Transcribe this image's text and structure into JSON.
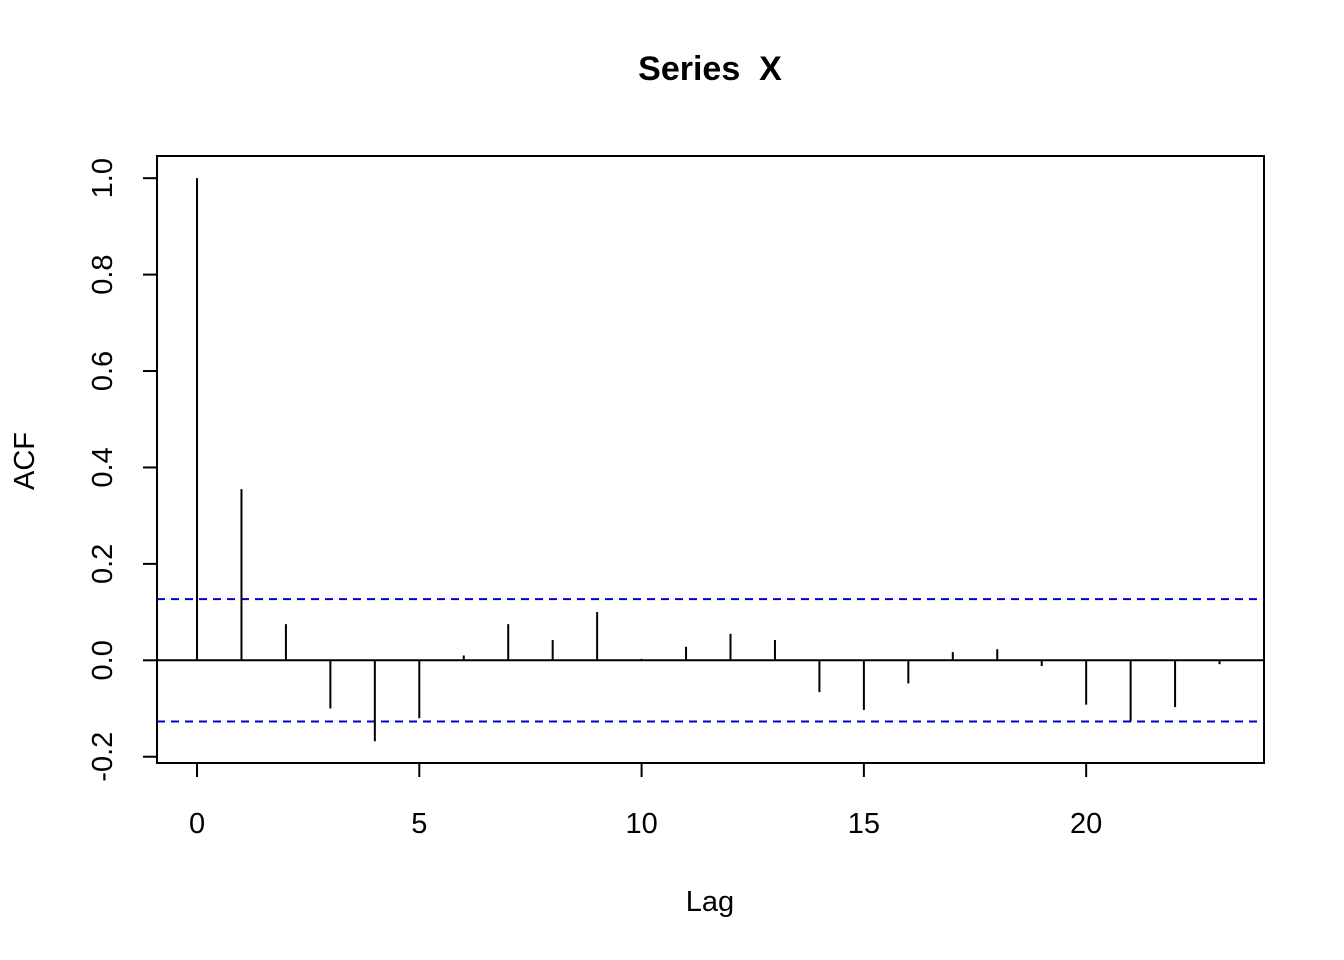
{
  "chart_data": {
    "type": "bar",
    "title": "Series  X",
    "xlabel": "Lag",
    "ylabel": "ACF",
    "xlim": [
      -0.9,
      24.0
    ],
    "ylim": [
      -0.213,
      1.046
    ],
    "x_ticks": [
      0,
      5,
      10,
      15,
      20
    ],
    "x_tick_labels": [
      "0",
      "5",
      "10",
      "15",
      "20"
    ],
    "y_ticks": [
      -0.2,
      0.0,
      0.2,
      0.4,
      0.6,
      0.8,
      1.0
    ],
    "y_tick_labels": [
      "-0.2",
      "0.0",
      "0.2",
      "0.4",
      "0.6",
      "0.8",
      "1.0"
    ],
    "lags": [
      0,
      1,
      2,
      3,
      4,
      5,
      6,
      7,
      8,
      9,
      10,
      11,
      12,
      13,
      14,
      15,
      16,
      17,
      18,
      19,
      20,
      21,
      22,
      23
    ],
    "acf": [
      1.0,
      0.355,
      0.075,
      -0.1,
      -0.168,
      -0.12,
      0.01,
      0.075,
      0.042,
      0.1,
      0.003,
      0.028,
      0.055,
      0.042,
      -0.066,
      -0.103,
      -0.048,
      0.017,
      0.023,
      -0.012,
      -0.092,
      -0.127,
      -0.097,
      -0.008
    ],
    "confidence_band": 0.127,
    "grid": false,
    "colors": {
      "bars": "#000000",
      "confidence": "#0000cc",
      "zero_line": "#000000"
    }
  }
}
